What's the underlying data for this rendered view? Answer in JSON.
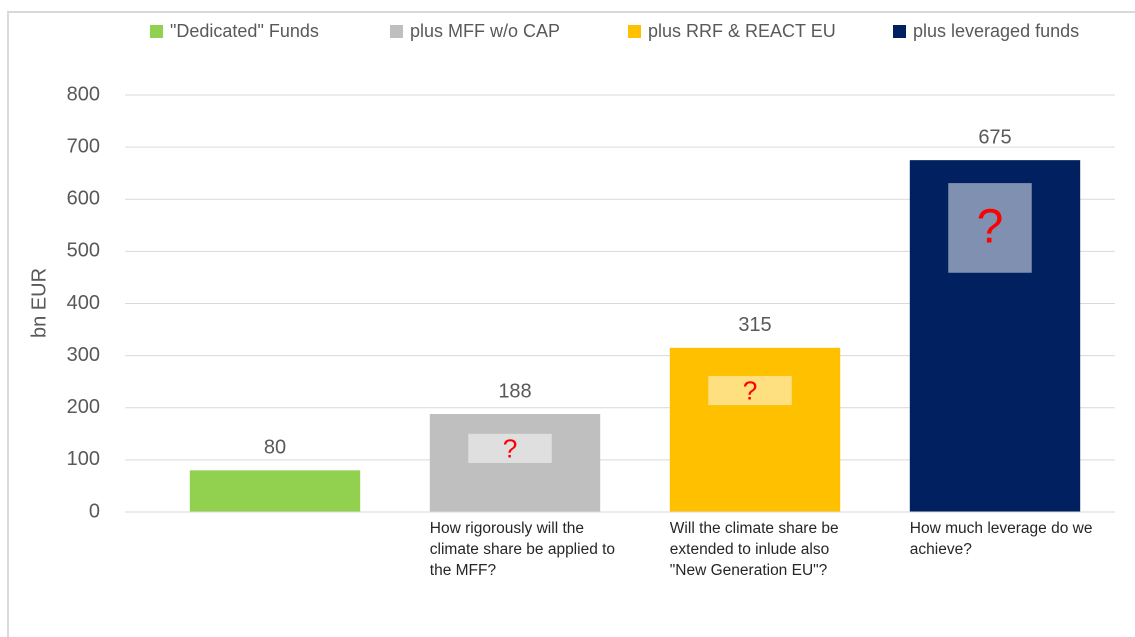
{
  "chart_data": {
    "type": "bar",
    "ylabel": "bn EUR",
    "categories": [
      null,
      "How rigorously will the climate share be applied to the MFF?",
      "Will the climate share be extended to inlude also \"New Generation EU\"?",
      "How much leverage do we achieve?"
    ],
    "series": [
      {
        "name": "\"Dedicated\" Funds",
        "color": "#92d050",
        "values": [
          80,
          null,
          null,
          null
        ]
      },
      {
        "name": "plus MFF w/o CAP",
        "color": "#bfbfbf",
        "values": [
          null,
          188,
          null,
          null
        ]
      },
      {
        "name": "plus RRF & REACT EU",
        "color": "#ffc000",
        "values": [
          null,
          null,
          315,
          null
        ]
      },
      {
        "name": "plus leveraged funds",
        "color": "#002060",
        "values": [
          null,
          null,
          null,
          675
        ]
      }
    ],
    "uncertainty_ranges": [
      null,
      [
        94,
        150
      ],
      [
        205,
        261
      ],
      [
        459,
        631
      ]
    ],
    "uncertainty_text": "?",
    "ylim": [
      0,
      800
    ],
    "yticks": [
      0,
      100,
      200,
      300,
      400,
      500,
      600,
      700,
      800
    ],
    "grid": true,
    "legend": "top"
  }
}
